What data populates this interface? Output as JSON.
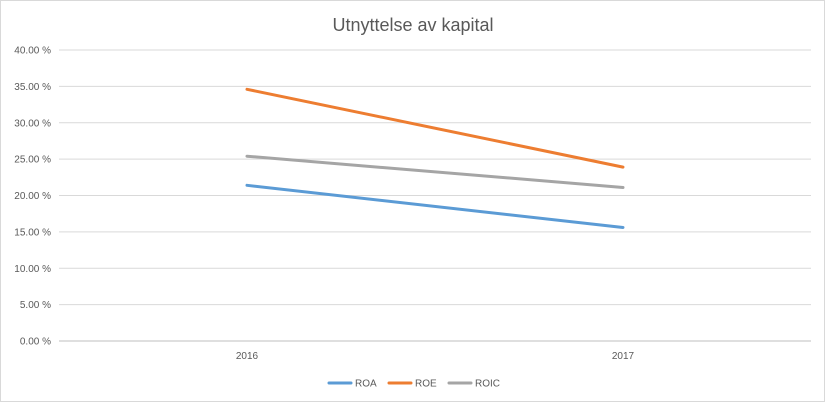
{
  "chart_data": {
    "type": "line",
    "title": "Utnyttelse av kapital",
    "xlabel": "",
    "ylabel": "",
    "categories": [
      "2016",
      "2017"
    ],
    "y_ticks": [
      "0.00 %",
      "5.00 %",
      "10.00 %",
      "15.00 %",
      "20.00 %",
      "25.00 %",
      "30.00 %",
      "35.00 %",
      "40.00 %"
    ],
    "ylim": [
      0,
      40
    ],
    "grid": true,
    "legend_position": "bottom",
    "series": [
      {
        "name": "ROA",
        "values": [
          21.4,
          15.6
        ],
        "color": "#5b9bd5"
      },
      {
        "name": "ROE",
        "values": [
          34.6,
          23.9
        ],
        "color": "#ed7d31"
      },
      {
        "name": "ROIC",
        "values": [
          25.4,
          21.1
        ],
        "color": "#a5a5a5"
      }
    ]
  }
}
